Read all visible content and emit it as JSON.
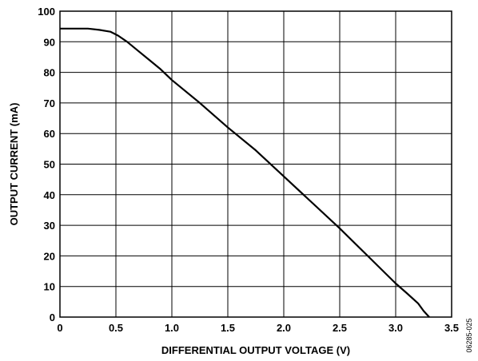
{
  "chart_data": {
    "type": "line",
    "title": "",
    "xlabel": "DIFFERENTIAL OUTPUT VOLTAGE (V)",
    "ylabel": "OUTPUT CURRENT (mA)",
    "xlim": [
      0,
      3.5
    ],
    "ylim": [
      0,
      100
    ],
    "x_ticks": [
      0,
      0.5,
      1.0,
      1.5,
      2.0,
      2.5,
      3.0,
      3.5
    ],
    "x_tick_labels": [
      "0",
      "0.5",
      "1.0",
      "1.5",
      "2.0",
      "2.5",
      "3.0",
      "3.5"
    ],
    "y_ticks": [
      0,
      10,
      20,
      30,
      40,
      50,
      60,
      70,
      80,
      90,
      100
    ],
    "y_tick_labels": [
      "0",
      "10",
      "20",
      "30",
      "40",
      "50",
      "60",
      "70",
      "80",
      "90",
      "100"
    ],
    "grid": true,
    "series": [
      {
        "color": "#000000",
        "x": [
          0,
          0.25,
          0.35,
          0.45,
          0.52,
          0.6,
          0.7,
          0.8,
          0.9,
          1.0,
          1.25,
          1.5,
          1.75,
          2.0,
          2.25,
          2.5,
          2.75,
          3.0,
          3.1,
          3.2,
          3.25,
          3.3
        ],
        "y": [
          94.3,
          94.3,
          93.9,
          93.3,
          92.0,
          90.0,
          87.0,
          84.0,
          81.0,
          77.5,
          70.0,
          62.0,
          54.5,
          46.0,
          37.5,
          29.0,
          20.0,
          11.0,
          7.8,
          4.5,
          2.0,
          0
        ]
      }
    ]
  },
  "figure_id": "06285-025"
}
